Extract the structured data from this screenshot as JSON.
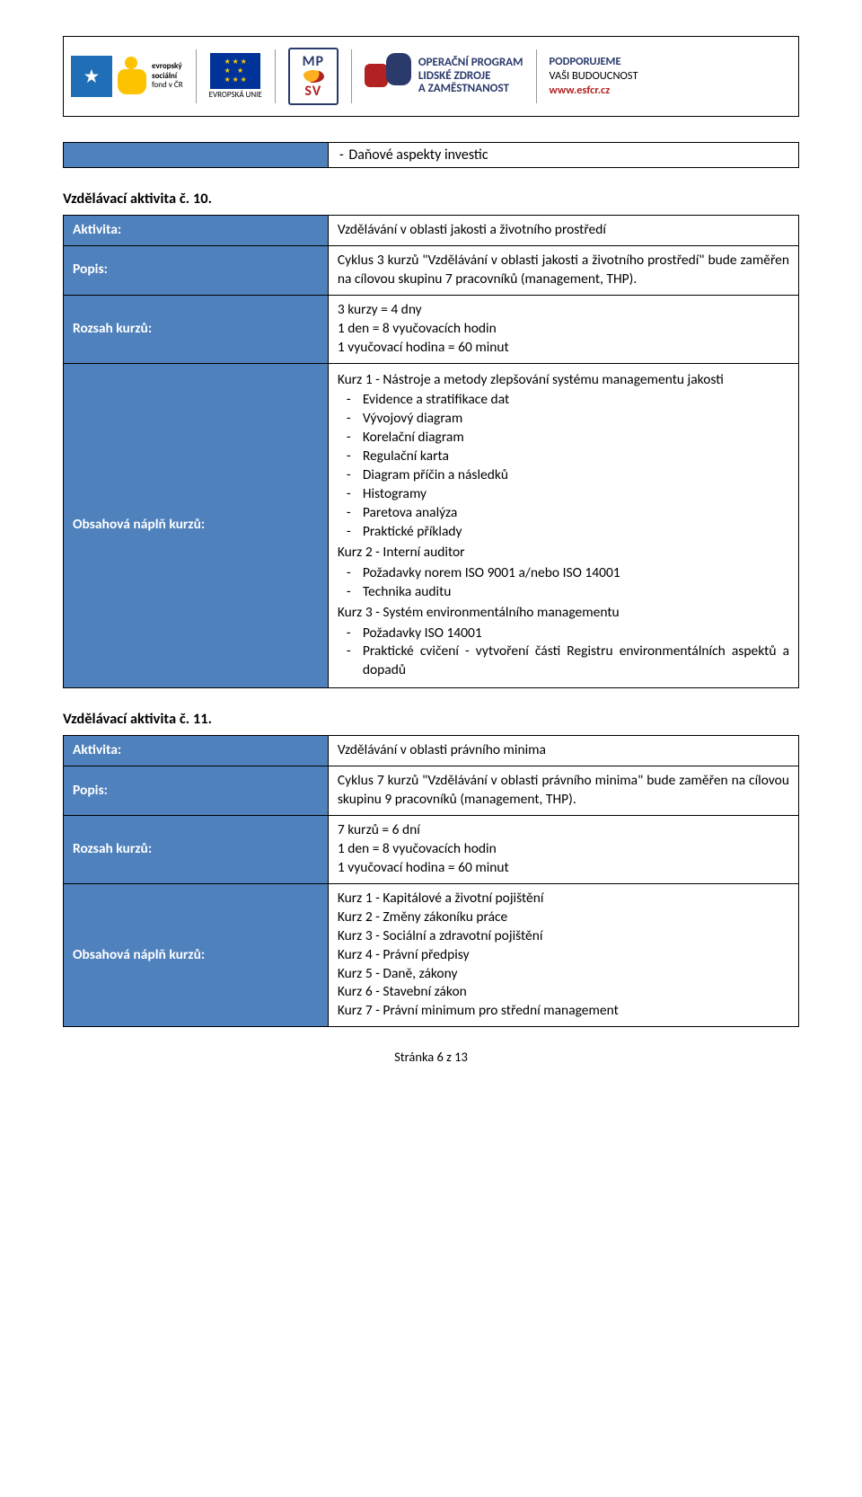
{
  "banner": {
    "esf_label1": "evropský",
    "esf_label2": "sociální",
    "esf_label3": "fond v ČR",
    "eu_label": "EVROPSKÁ UNIE",
    "mpsv_top": "MP",
    "mpsv_bottom": "SV",
    "oplzz_line1": "OPERAČNÍ PROGRAM",
    "oplzz_line2": "LIDSKÉ ZDROJE",
    "oplzz_line3": "A ZAMĚSTNANOST",
    "support_title": "PODPORUJEME",
    "support_sub": "VAŠI BUDOUCNOST",
    "support_link": "www.esfcr.cz"
  },
  "top_table": {
    "item": "Daňové aspekty investic"
  },
  "activity10": {
    "section_title": "Vzdělávací aktivita č. 10.",
    "labels": {
      "aktivita": "Aktivita:",
      "popis": "Popis:",
      "rozsah": "Rozsah kurzů:",
      "obsah": "Obsahová náplň kurzů:"
    },
    "aktivita": "Vzdělávání v oblasti jakosti a životního prostředí",
    "popis": "Cyklus 3 kurzů \"Vzdělávání v oblasti jakosti a životního prostředí\" bude zaměřen na cílovou skupinu 7 pracovníků (management, THP).",
    "rozsah_lines": [
      "3 kurzy = 4 dny",
      "1 den = 8 vyučovacích hodin",
      "1 vyučovací hodina = 60 minut"
    ],
    "kurz1_title": "Kurz 1 - Nástroje a metody zlepšování systému managementu jakosti",
    "kurz1_items": [
      "Evidence a stratifikace dat",
      "Vývojový diagram",
      "Korelační diagram",
      "Regulační karta",
      "Diagram příčin a následků",
      "Histogramy",
      "Paretova analýza",
      "Praktické příklady"
    ],
    "kurz2_title": "Kurz 2 - Interní auditor",
    "kurz2_items": [
      "Požadavky norem ISO 9001 a/nebo ISO 14001",
      "Technika auditu"
    ],
    "kurz3_title": "Kurz 3 - Systém environmentálního managementu",
    "kurz3_items": [
      "Požadavky ISO 14001",
      "Praktické cvičení - vytvoření části Registru environmentálních aspektů a dopadů"
    ]
  },
  "activity11": {
    "section_title": "Vzdělávací aktivita č. 11.",
    "labels": {
      "aktivita": "Aktivita:",
      "popis": "Popis:",
      "rozsah": "Rozsah kurzů:",
      "obsah": "Obsahová náplň kurzů:"
    },
    "aktivita": "Vzdělávání v oblasti právního minima",
    "popis": "Cyklus 7 kurzů \"Vzdělávání v oblasti právního minima\" bude zaměřen na cílovou skupinu 9 pracovníků (management, THP).",
    "rozsah_lines": [
      "7 kurzů = 6 dní",
      "1 den = 8 vyučovacích hodin",
      "1 vyučovací hodina = 60 minut"
    ],
    "kurz_lines": [
      "Kurz 1 - Kapitálové a životní pojištění",
      "Kurz 2 - Změny zákoníku práce",
      "Kurz 3 - Sociální a zdravotní pojištění",
      "Kurz 4 - Právní předpisy",
      "Kurz 5 - Daně, zákony",
      "Kurz 6 - Stavební zákon",
      "Kurz 7 - Právní minimum pro střední management"
    ]
  },
  "footer": "Stránka 6 z 13"
}
